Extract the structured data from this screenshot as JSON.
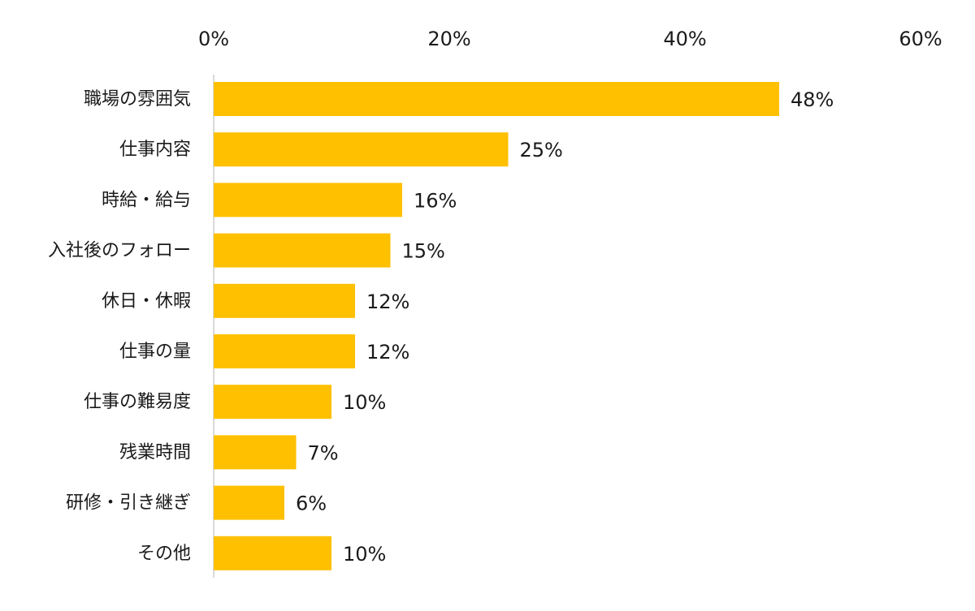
{
  "chart_data": {
    "type": "bar",
    "orientation": "horizontal",
    "categories": [
      "職場の雰囲気",
      "仕事内容",
      "時給・給与",
      "入社後のフォロー",
      "休日・休暇",
      "仕事の量",
      "仕事の難易度",
      "残業時間",
      "研修・引き継ぎ",
      "その他"
    ],
    "values": [
      48,
      25,
      16,
      15,
      12,
      12,
      10,
      7,
      6,
      10
    ],
    "value_labels": [
      "48%",
      "25%",
      "16%",
      "15%",
      "12%",
      "12%",
      "10%",
      "7%",
      "6%",
      "10%"
    ],
    "x_ticks": [
      0,
      20,
      40,
      60
    ],
    "x_tick_labels": [
      "0%",
      "20%",
      "40%",
      "60%"
    ],
    "xlim": [
      0,
      60
    ],
    "axis_position": "top",
    "grid": false,
    "legend": "none",
    "bar_color": "#FFC000"
  }
}
